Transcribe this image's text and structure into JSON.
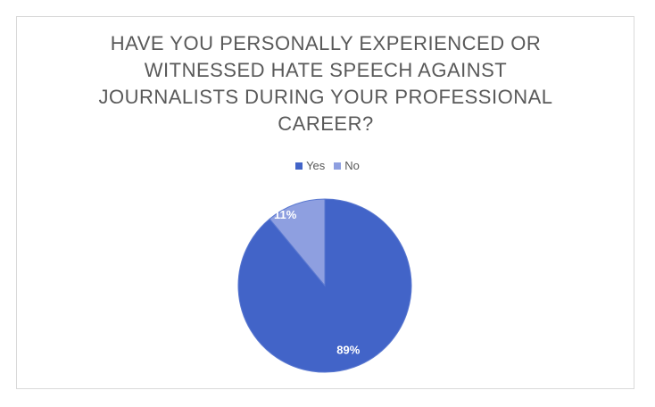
{
  "chart_data": {
    "type": "pie",
    "title": "HAVE YOU PERSONALLY EXPERIENCED OR WITNESSED HATE SPEECH AGAINST JOURNALISTS DURING YOUR PROFESSIONAL CAREER?",
    "categories": [
      "Yes",
      "No"
    ],
    "values": [
      89,
      11
    ],
    "value_labels": [
      "89%",
      "11%"
    ],
    "colors": [
      "#4264c8",
      "#8e9fe0"
    ]
  }
}
